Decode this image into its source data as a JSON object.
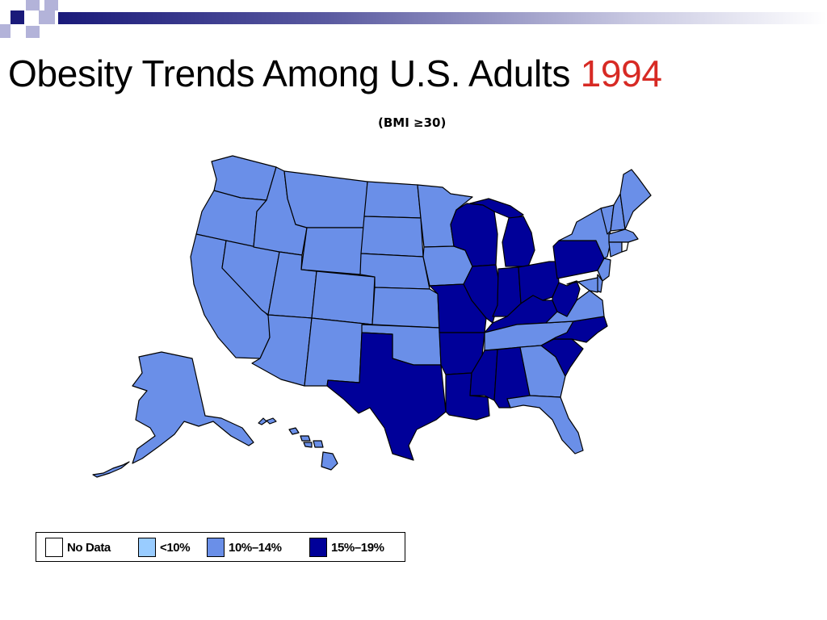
{
  "title": {
    "text": "Obesity Trends Among U.S. Adults",
    "year": "1994"
  },
  "subtitle": "(BMI ≥30)",
  "colors": {
    "no_data": "#ffffff",
    "lt10": "#99ccff",
    "r10_14": "#6a8fe8",
    "r15_19": "#000099",
    "deco_dark": "#1a1a7a",
    "deco_light": "#b3b3d9",
    "title_year": "#d72a24"
  },
  "legend": [
    {
      "key": "no_data",
      "label": "No Data"
    },
    {
      "key": "lt10",
      "label": "<10%"
    },
    {
      "key": "r10_14",
      "label": "10%–14%"
    },
    {
      "key": "r15_19",
      "label": "15%–19%"
    }
  ],
  "states": {
    "WA": "r10_14",
    "OR": "r10_14",
    "CA": "r10_14",
    "NV": "r10_14",
    "ID": "r10_14",
    "MT": "r10_14",
    "WY": "r10_14",
    "UT": "r10_14",
    "AZ": "r10_14",
    "CO": "r10_14",
    "NM": "r10_14",
    "ND": "r10_14",
    "SD": "r10_14",
    "NE": "r10_14",
    "KS": "r10_14",
    "OK": "r10_14",
    "TX": "r15_19",
    "MN": "r10_14",
    "IA": "r10_14",
    "MO": "r15_19",
    "AR": "r15_19",
    "LA": "r15_19",
    "WI": "r15_19",
    "IL": "r15_19",
    "MI": "r15_19",
    "IN": "r15_19",
    "OH": "r15_19",
    "KY": "r15_19",
    "TN": "r10_14",
    "MS": "r15_19",
    "AL": "r15_19",
    "GA": "r10_14",
    "FL": "r10_14",
    "SC": "r15_19",
    "NC": "r15_19",
    "VA": "r10_14",
    "WV": "r15_19",
    "PA": "r15_19",
    "NY": "r10_14",
    "NJ": "r10_14",
    "DE": "r10_14",
    "MD": "r10_14",
    "CT": "r10_14",
    "RI": "no_data",
    "MA": "r10_14",
    "VT": "r10_14",
    "NH": "r10_14",
    "ME": "r10_14",
    "AK": "r10_14",
    "HI": "r10_14"
  }
}
